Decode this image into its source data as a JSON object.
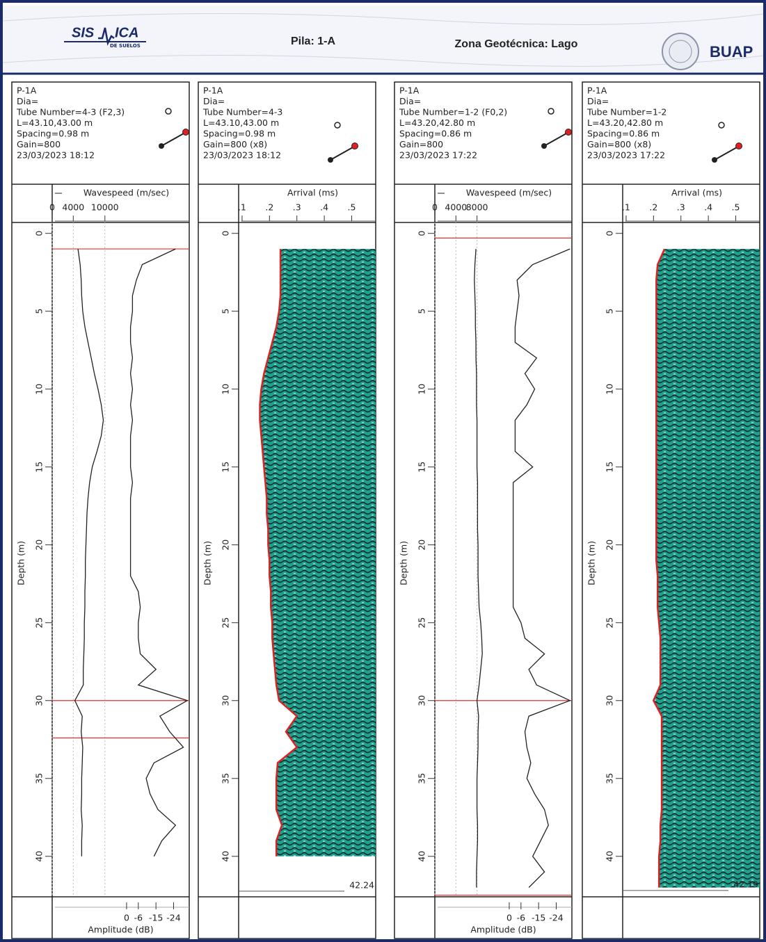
{
  "header": {
    "logo_left": "SIS",
    "logo_right": "ICA",
    "logo_sub": "DE SUELOS",
    "pila": "Pila: 1-A",
    "zona": "Zona Geotécnica: Lago",
    "institution": "BUAP"
  },
  "chart_data": [
    {
      "type": "line",
      "info": [
        "P-1A",
        "Dia=",
        "Tube Number=4-3 (F2,3)",
        "L=43.10,43.00 m",
        "Spacing=0.98 m",
        "Gain=800",
        "23/03/2023 18:12"
      ],
      "xlabel": "Wavespeed (m/sec)",
      "xlim": [
        0,
        26000
      ],
      "xticks": [
        0,
        4000,
        10000
      ],
      "grid": true,
      "color": "#222222",
      "ylabel": "Depth (m)",
      "ylim": [
        -0.7,
        42.6
      ],
      "yticks": [
        0,
        5,
        10,
        15,
        20,
        25,
        30,
        35,
        40
      ],
      "depth": [
        1,
        2,
        3,
        4,
        5,
        6,
        7,
        8,
        9,
        10,
        11,
        12,
        13,
        14,
        15,
        16,
        17,
        18,
        19,
        20,
        21,
        22,
        23,
        24,
        25,
        26,
        27,
        28,
        29,
        30,
        31,
        32,
        33,
        34,
        35,
        36,
        37,
        38,
        39,
        40
      ],
      "values": [
        4900,
        5300,
        5500,
        5600,
        5800,
        6200,
        6800,
        7400,
        8000,
        8700,
        9300,
        9700,
        9300,
        8500,
        7600,
        7100,
        6800,
        6600,
        6500,
        6400,
        6300,
        6300,
        6200,
        6200,
        6100,
        6100,
        6000,
        5900,
        5900,
        4300,
        5700,
        5500,
        5800,
        5700,
        5600,
        5600,
        5500,
        5700,
        5600,
        5600
      ],
      "amplitude": {
        "label": "Amplitude (dB)",
        "xlim": [
          38,
          -32
        ],
        "xticks": [
          0,
          -6,
          -15,
          -24
        ],
        "color": "#222222",
        "values": [
          -25,
          -8,
          -5,
          -3,
          -3,
          -2,
          -2,
          -3,
          -2,
          -3,
          -2,
          -3,
          -2,
          -2,
          -2,
          -3,
          -2,
          -2,
          -2,
          -2,
          -2,
          -2,
          -6,
          -7,
          -6,
          -6,
          -7,
          -15,
          -6,
          -31,
          -17,
          -22,
          -29,
          -14,
          -10,
          -12,
          -16,
          -25,
          -18,
          -14
        ]
      },
      "flags": [
        1,
        30,
        32.4
      ],
      "flag_color": "#e03030"
    },
    {
      "type": "arrival",
      "info": [
        "P-1A",
        "Dia=",
        "Tube Number=4-3",
        "L=43.10,43.00 m",
        "Spacing=0.98 m",
        "Gain=800 (x8)",
        "23/03/2023 18:12"
      ],
      "xlabel": "Arrival (ms)",
      "xlim": [
        0.0875,
        0.5875
      ],
      "xticks": [
        {
          "value": 0.1,
          "label": ".1"
        },
        {
          "value": 0.2,
          "label": ".2"
        },
        {
          "value": 0.3,
          "label": ".3"
        },
        {
          "value": 0.4,
          "label": ".4"
        },
        {
          "value": 0.5,
          "label": ".5"
        }
      ],
      "ylabel": "Depth (m)",
      "ylim": [
        -0.7,
        42.6
      ],
      "yticks": [
        0,
        5,
        10,
        15,
        20,
        25,
        30,
        35,
        40
      ],
      "depth": [
        1,
        2,
        3,
        4,
        5,
        6,
        7,
        8,
        9,
        10,
        11,
        12,
        13,
        14,
        15,
        16,
        17,
        18,
        19,
        20,
        21,
        22,
        23,
        24,
        25,
        26,
        27,
        28,
        29,
        30,
        31,
        32,
        33,
        34,
        35,
        36,
        37,
        38,
        39,
        40
      ],
      "values": [
        0.24,
        0.24,
        0.24,
        0.24,
        0.235,
        0.225,
        0.21,
        0.195,
        0.18,
        0.17,
        0.165,
        0.165,
        0.17,
        0.175,
        0.18,
        0.185,
        0.19,
        0.19,
        0.195,
        0.195,
        0.2,
        0.2,
        0.205,
        0.205,
        0.21,
        0.21,
        0.215,
        0.22,
        0.225,
        0.235,
        0.3,
        0.26,
        0.3,
        0.23,
        0.225,
        0.225,
        0.225,
        0.245,
        0.225,
        0.225
      ],
      "fill": "#1fa08f",
      "edge_color": "#e02020",
      "end_label": 42.24
    },
    {
      "type": "line",
      "info": [
        "P-1A",
        "Dia=",
        "Tube Number=1-2 (F0,2)",
        "L=43.20,42.80 m",
        "Spacing=0.86 m",
        "Gain=800",
        "23/03/2023 17:22"
      ],
      "xlabel": "Wavespeed (m/sec)",
      "xlim": [
        0,
        26000
      ],
      "xticks": [
        0,
        4000,
        8000
      ],
      "grid": true,
      "color": "#222222",
      "ylabel": "Depth (m)",
      "ylim": [
        -0.7,
        42.6
      ],
      "yticks": [
        0,
        5,
        10,
        15,
        20,
        25,
        30,
        35,
        40
      ],
      "depth": [
        1,
        2,
        3,
        4,
        5,
        6,
        7,
        8,
        9,
        10,
        11,
        12,
        13,
        14,
        15,
        16,
        17,
        18,
        19,
        20,
        21,
        22,
        23,
        24,
        25,
        26,
        27,
        28,
        29,
        30,
        31,
        32,
        33,
        34,
        35,
        36,
        37,
        38,
        39,
        40,
        41,
        42
      ],
      "values": [
        7800,
        7600,
        7500,
        7600,
        7700,
        7700,
        7800,
        7800,
        7900,
        7900,
        7900,
        8000,
        8000,
        8000,
        8000,
        8100,
        8100,
        8100,
        8100,
        8200,
        8200,
        8200,
        8300,
        8400,
        8700,
        8900,
        9000,
        8700,
        8400,
        8000,
        8300,
        8200,
        8200,
        8100,
        8000,
        8000,
        8000,
        8100,
        8100,
        8000,
        7900,
        7900
      ],
      "amplitude": {
        "label": "Amplitude (dB)",
        "xlim": [
          38,
          -32
        ],
        "xticks": [
          0,
          -6,
          -15,
          -24
        ],
        "color": "#222222",
        "values": [
          -31,
          -12,
          -4,
          -5,
          -4,
          -3,
          -3,
          -14,
          -8,
          -13,
          -9,
          -3,
          -3,
          -3,
          -12,
          -2,
          -2,
          -2,
          -2,
          -2,
          -2,
          -2,
          -2,
          -2,
          -6,
          -8,
          -18,
          -10,
          -14,
          -31,
          -10,
          -8,
          -9,
          -11,
          -9,
          -13,
          -18,
          -20,
          -16,
          -12,
          -18,
          -10
        ]
      },
      "flags": [
        0.3,
        30,
        42.5
      ],
      "flag_color": "#e03030"
    },
    {
      "type": "arrival",
      "info": [
        "P-1A",
        "Dia=",
        "Tube Number=1-2",
        "L=43.20,42.80 m",
        "Spacing=0.86 m",
        "Gain=800 (x8)",
        "23/03/2023 17:22"
      ],
      "xlabel": "Arrival (ms)",
      "xlim": [
        0.0875,
        0.5875
      ],
      "xticks": [
        {
          "value": 0.1,
          "label": ".1"
        },
        {
          "value": 0.2,
          "label": ".2"
        },
        {
          "value": 0.3,
          "label": ".3"
        },
        {
          "value": 0.4,
          "label": ".4"
        },
        {
          "value": 0.5,
          "label": ".5"
        }
      ],
      "ylabel": "Depth (m)",
      "ylim": [
        -0.7,
        42.6
      ],
      "yticks": [
        0,
        5,
        10,
        15,
        20,
        25,
        30,
        35,
        40
      ],
      "depth": [
        1,
        2,
        3,
        4,
        5,
        6,
        7,
        8,
        9,
        10,
        11,
        12,
        13,
        14,
        15,
        16,
        17,
        18,
        19,
        20,
        21,
        22,
        23,
        24,
        25,
        26,
        27,
        28,
        29,
        30,
        31,
        32,
        33,
        34,
        35,
        36,
        37,
        38,
        39,
        40,
        41,
        42
      ],
      "values": [
        0.24,
        0.215,
        0.21,
        0.21,
        0.21,
        0.21,
        0.21,
        0.21,
        0.21,
        0.21,
        0.21,
        0.21,
        0.21,
        0.21,
        0.21,
        0.21,
        0.21,
        0.21,
        0.21,
        0.21,
        0.21,
        0.215,
        0.215,
        0.215,
        0.22,
        0.225,
        0.225,
        0.225,
        0.225,
        0.2,
        0.23,
        0.23,
        0.23,
        0.23,
        0.23,
        0.23,
        0.23,
        0.225,
        0.225,
        0.22,
        0.22,
        0.22
      ],
      "fill": "#1fa08f",
      "edge_color": "#e02020",
      "end_label": 42.19
    }
  ]
}
